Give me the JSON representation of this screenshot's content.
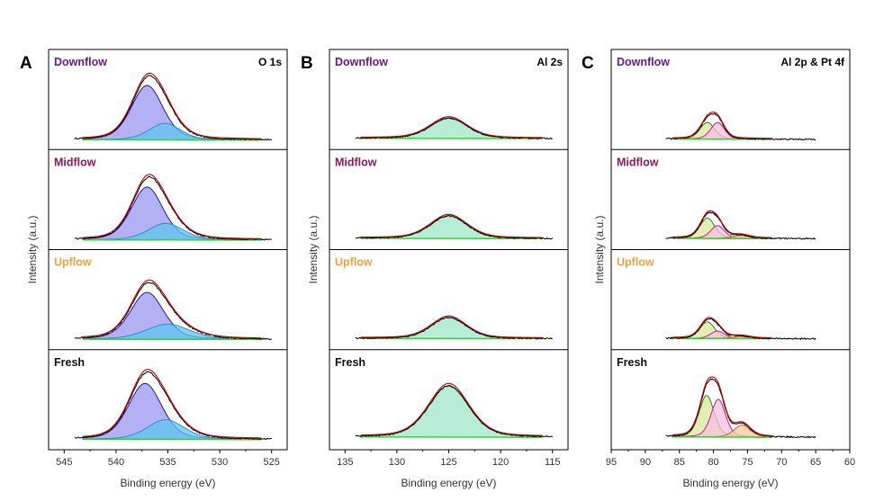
{
  "colors": {
    "downflow": "#6a1b8a",
    "midflow": "#8b1a5e",
    "upflow": "#f0a040",
    "fresh": "#111111",
    "envelope": "#c00000",
    "raw": "#000000",
    "background": "#22dd22"
  },
  "chart_data": [
    {
      "panel": "A",
      "type": "line",
      "region": "O 1s",
      "xlabel": "Binding energy (eV)",
      "ylabel": "Intensity (a.u.)",
      "xlim": [
        546.5,
        523.5
      ],
      "xticks": [
        545,
        540,
        535,
        530,
        525
      ],
      "xtick_labels": [
        "545",
        "540",
        "535",
        "530",
        "525"
      ],
      "range": [
        544,
        525
      ],
      "fit_range": [
        543.2,
        526
      ],
      "samples": [
        {
          "name": "Downflow",
          "baseline": 0.03,
          "components": [
            {
              "center": 537,
              "height": 0.72,
              "fwhm": 3.6,
              "eta": 0.3,
              "fill": "#9b95f0",
              "stroke": "#1f1aa8"
            },
            {
              "center": 535.3,
              "height": 0.22,
              "fwhm": 3.6,
              "eta": 0.3,
              "fill": "#5fc6f0",
              "stroke": "#2a8fd0"
            }
          ]
        },
        {
          "name": "Midflow",
          "baseline": 0.03,
          "components": [
            {
              "center": 537,
              "height": 0.7,
              "fwhm": 3.6,
              "eta": 0.3,
              "fill": "#9b95f0",
              "stroke": "#1f1aa8"
            },
            {
              "center": 535.2,
              "height": 0.22,
              "fwhm": 4.0,
              "eta": 0.3,
              "fill": "#5fc6f0",
              "stroke": "#2a8fd0"
            }
          ]
        },
        {
          "name": "Upflow",
          "baseline": 0.04,
          "components": [
            {
              "center": 537,
              "height": 0.62,
              "fwhm": 3.8,
              "eta": 0.3,
              "fill": "#9b95f0",
              "stroke": "#1f1aa8"
            },
            {
              "center": 535,
              "height": 0.2,
              "fwhm": 5.0,
              "eta": 0.3,
              "fill": "#5fc6f0",
              "stroke": "#2a8fd0"
            }
          ]
        },
        {
          "name": "Fresh",
          "baseline": 0.04,
          "components": [
            {
              "center": 537.2,
              "height": 0.74,
              "fwhm": 3.8,
              "eta": 0.3,
              "fill": "#9b95f0",
              "stroke": "#1f1aa8"
            },
            {
              "center": 535.2,
              "height": 0.26,
              "fwhm": 4.2,
              "eta": 0.3,
              "fill": "#5fc6f0",
              "stroke": "#2a8fd0"
            }
          ]
        }
      ]
    },
    {
      "panel": "B",
      "type": "line",
      "region": "Al 2s",
      "xlabel": "Binding energy (eV)",
      "ylabel": "Intensity (a.u.)",
      "xlim": [
        136.5,
        113.5
      ],
      "xticks": [
        135,
        130,
        125,
        120,
        115
      ],
      "xtick_labels": [
        "135",
        "130",
        "125",
        "120",
        "115"
      ],
      "range": [
        134,
        115
      ],
      "fit_range": [
        133.5,
        116
      ],
      "samples": [
        {
          "name": "Downflow",
          "baseline": 0.05,
          "components": [
            {
              "center": 125,
              "height": 0.27,
              "fwhm": 4.2,
              "eta": 0.3,
              "fill": "#9fe6c8",
              "stroke": "#1f8a60"
            }
          ]
        },
        {
          "name": "Midflow",
          "baseline": 0.05,
          "components": [
            {
              "center": 125,
              "height": 0.3,
              "fwhm": 4.2,
              "eta": 0.3,
              "fill": "#9fe6c8",
              "stroke": "#1f8a60"
            }
          ]
        },
        {
          "name": "Upflow",
          "baseline": 0.05,
          "components": [
            {
              "center": 125,
              "height": 0.28,
              "fwhm": 4.0,
              "eta": 0.3,
              "fill": "#9fe6c8",
              "stroke": "#1f8a60"
            }
          ]
        },
        {
          "name": "Fresh",
          "baseline": 0.07,
          "components": [
            {
              "center": 125,
              "height": 0.68,
              "fwhm": 4.6,
              "eta": 0.3,
              "fill": "#9fe6c8",
              "stroke": "#1f8a60"
            }
          ]
        }
      ]
    },
    {
      "panel": "C",
      "type": "line",
      "region": "Al 2p & Pt 4f",
      "xlabel": "Binding energy (eV)",
      "ylabel": "Intensity (a.u.)",
      "xlim": [
        95,
        60
      ],
      "xticks": [
        95,
        90,
        85,
        80,
        75,
        70,
        65,
        60
      ],
      "xtick_labels": [
        "95",
        "90",
        "85",
        "80",
        "75",
        "70",
        "65",
        "60"
      ],
      "range": [
        87,
        65
      ],
      "fit_range": [
        86,
        71.5
      ],
      "samples": [
        {
          "name": "Downflow",
          "baseline": 0.04,
          "components": [
            {
              "center": 80.9,
              "height": 0.22,
              "fwhm": 2.6,
              "eta": 0.3,
              "fill": "#d8e8a0",
              "stroke": "#3a7a20"
            },
            {
              "center": 79.4,
              "height": 0.22,
              "fwhm": 2.4,
              "eta": 0.3,
              "fill": "#f4c0e0",
              "stroke": "#c02080"
            }
          ]
        },
        {
          "name": "Midflow",
          "baseline": 0.05,
          "components": [
            {
              "center": 80.9,
              "height": 0.27,
              "fwhm": 2.6,
              "eta": 0.3,
              "fill": "#d8e8a0",
              "stroke": "#3a7a20"
            },
            {
              "center": 79.4,
              "height": 0.17,
              "fwhm": 2.4,
              "eta": 0.3,
              "fill": "#f4c0e0",
              "stroke": "#c02080"
            },
            {
              "center": 76,
              "height": 0.04,
              "fwhm": 3.0,
              "eta": 0.3,
              "fill": "#f6c8a0",
              "stroke": "#d06020"
            }
          ]
        },
        {
          "name": "Upflow",
          "baseline": 0.05,
          "components": [
            {
              "center": 80.9,
              "height": 0.22,
              "fwhm": 2.6,
              "eta": 0.3,
              "fill": "#d8e8a0",
              "stroke": "#3a7a20"
            },
            {
              "center": 79.4,
              "height": 0.1,
              "fwhm": 2.4,
              "eta": 0.3,
              "fill": "#f4c0e0",
              "stroke": "#c02080"
            },
            {
              "center": 76,
              "height": 0.03,
              "fwhm": 3.0,
              "eta": 0.3,
              "fill": "#f6c8a0",
              "stroke": "#d06020"
            }
          ]
        },
        {
          "name": "Fresh",
          "baseline": 0.07,
          "components": [
            {
              "center": 81,
              "height": 0.55,
              "fwhm": 2.6,
              "eta": 0.3,
              "fill": "#d8e8a0",
              "stroke": "#3a7a20"
            },
            {
              "center": 79.3,
              "height": 0.5,
              "fwhm": 2.5,
              "eta": 0.3,
              "fill": "#f4c0e0",
              "stroke": "#c02080"
            },
            {
              "center": 75.8,
              "height": 0.16,
              "fwhm": 2.8,
              "eta": 0.3,
              "fill": "#f6c8a0",
              "stroke": "#d06020"
            }
          ]
        }
      ]
    }
  ]
}
